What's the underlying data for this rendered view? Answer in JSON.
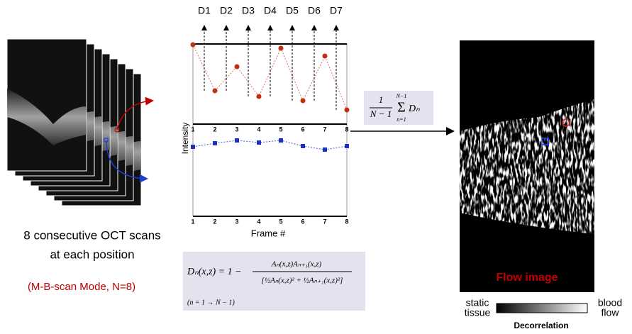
{
  "decorrelation_labels": [
    "D1",
    "D2",
    "D3",
    "D4",
    "D5",
    "D6",
    "D7"
  ],
  "plot": {
    "y_label": "Intensity",
    "x_label": "Frame #",
    "x_ticks": [
      "1",
      "2",
      "3",
      "4",
      "5",
      "6",
      "7",
      "8"
    ]
  },
  "caption": {
    "line1": "8 consecutive OCT scans",
    "line2": "at each position",
    "mode": "(M-B-scan Mode, N=8)"
  },
  "average_formula": {
    "numerator": "1",
    "denominator": "N − 1",
    "sum": "Σ",
    "sum_upper": "N−1",
    "sum_lower": "n=1",
    "term": "Dₙ"
  },
  "decorrelation_formula": {
    "left": "Dₙ(x,z) = 1 −",
    "numerator": "Aₙ(x,z)Aₙ₊₁(x,z)",
    "denominator": "[½Aₙ(x,z)² + ½Aₙ₊₁(x,z)²]",
    "condition": "(n = 1 → N − 1)"
  },
  "flow_image": {
    "label": "Flow image"
  },
  "colorbar": {
    "left": [
      "static",
      "tissue"
    ],
    "right": [
      "blood",
      "flow"
    ],
    "title": "Decorrelation"
  }
}
